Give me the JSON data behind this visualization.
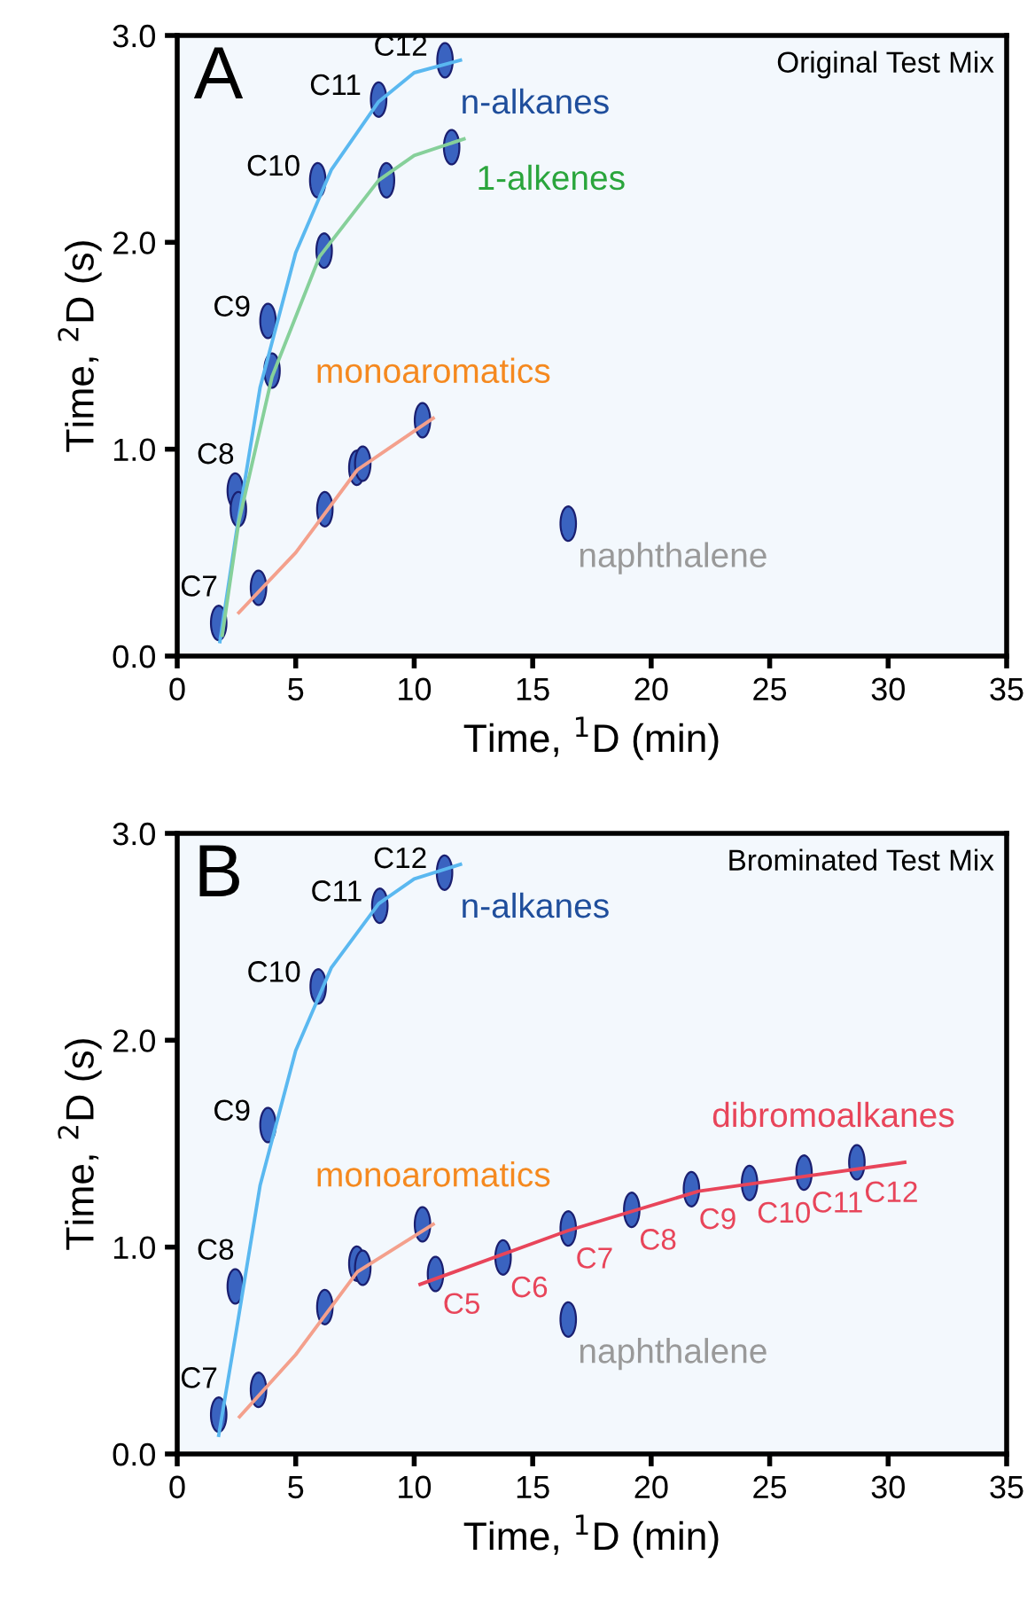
{
  "chart_data": [
    {
      "type": "scatter",
      "title": "Original Test Mix",
      "xlabel": "Time, $^{1}$D (min)",
      "ylabel": "Time, $^{2}$D (s)",
      "annotations": [
        "A"
      ],
      "xlim": [
        0,
        35
      ],
      "xticks": [
        0,
        5,
        10,
        15,
        20,
        25,
        30,
        35
      ],
      "ylim": [
        0,
        3
      ],
      "yticks": [
        {
          "value": 0,
          "label": "0.0"
        },
        {
          "value": 1,
          "label": "1.0"
        },
        {
          "value": 2,
          "label": "2.0"
        },
        {
          "value": 3,
          "label": "3.0"
        }
      ],
      "series": [
        {
          "type": "line",
          "name": "n-alkanes",
          "color": "#5ab8f0",
          "x": [
            1.8,
            2.5,
            3.5,
            5,
            6.5,
            8.5,
            10,
            11.95
          ],
          "values": [
            0.07,
            0.6,
            1.3,
            1.95,
            2.35,
            2.68,
            2.82,
            2.88
          ]
        },
        {
          "type": "line",
          "name": "1-alkenes",
          "color": "#86d09a",
          "x": [
            1.9,
            2.6,
            4,
            6,
            8.5,
            10,
            12.1
          ],
          "values": [
            0.1,
            0.65,
            1.35,
            1.93,
            2.3,
            2.42,
            2.5
          ]
        },
        {
          "type": "line",
          "name": "monoaromatics",
          "color": "#f4a08c",
          "x": [
            2.6,
            5,
            7.6,
            10.8
          ],
          "values": [
            0.21,
            0.5,
            0.9,
            1.15
          ]
        },
        {
          "color": "#3a63c0",
          "x": [
            1.75,
            2.45,
            3.83,
            5.93,
            8.5,
            11.3
          ],
          "values": [
            0.16,
            0.8,
            1.62,
            2.3,
            2.69,
            2.88
          ],
          "value_labels": [
            "C7",
            "C8",
            "C9",
            "C10",
            "C11",
            "C12"
          ]
        },
        {
          "color": "#3a63c0",
          "x": [
            2.58,
            4.0,
            6.2,
            8.83,
            11.58
          ],
          "values": [
            0.71,
            1.38,
            1.96,
            2.3,
            2.46
          ]
        },
        {
          "color": "#3a63c0",
          "x": [
            3.43,
            6.23,
            7.58,
            7.83,
            10.35
          ],
          "values": [
            0.33,
            0.71,
            0.91,
            0.93,
            1.14
          ]
        },
        {
          "color": "#3a63c0",
          "x": [
            16.5
          ],
          "values": [
            0.64
          ],
          "value_labels": [
            "naphthalene"
          ]
        }
      ]
    },
    {
      "type": "scatter",
      "title": "Brominated Test Mix",
      "xlabel": "Time, $^{1}$D (min)",
      "ylabel": "Time, $^{2}$D (s)",
      "annotations": [
        "B"
      ],
      "xlim": [
        0,
        35
      ],
      "xticks": [
        0,
        5,
        10,
        15,
        20,
        25,
        30,
        35
      ],
      "ylim": [
        0,
        3
      ],
      "yticks": [
        {
          "value": 0,
          "label": "0.0"
        },
        {
          "value": 1,
          "label": "1.0"
        },
        {
          "value": 2,
          "label": "2.0"
        },
        {
          "value": 3,
          "label": "3.0"
        }
      ],
      "series": [
        {
          "type": "line",
          "name": "n-alkanes",
          "color": "#5ab8f0",
          "x": [
            1.75,
            2.5,
            3.5,
            5,
            6.5,
            8.5,
            10,
            11.95
          ],
          "values": [
            0.09,
            0.6,
            1.3,
            1.95,
            2.35,
            2.66,
            2.78,
            2.85
          ]
        },
        {
          "type": "line",
          "name": "monoaromatics",
          "color": "#f4a08c",
          "x": [
            2.63,
            5,
            7.6,
            10.8
          ],
          "values": [
            0.18,
            0.48,
            0.88,
            1.11
          ]
        },
        {
          "type": "line",
          "name": "dibromoalkanes",
          "color": "#e8455a",
          "x": [
            10.25,
            16.5,
            22,
            30.7
          ],
          "values": [
            0.82,
            1.08,
            1.27,
            1.41
          ]
        },
        {
          "color": "#3a63c0",
          "x": [
            1.75,
            2.45,
            3.83,
            5.95,
            8.55,
            11.28
          ],
          "values": [
            0.19,
            0.81,
            1.59,
            2.26,
            2.65,
            2.81
          ],
          "value_labels": [
            "C7",
            "C8",
            "C9",
            "C10",
            "C11",
            "C12"
          ]
        },
        {
          "color": "#3a63c0",
          "x": [
            3.43,
            6.23,
            7.58,
            7.83,
            10.35
          ],
          "values": [
            0.31,
            0.71,
            0.92,
            0.9,
            1.11
          ]
        },
        {
          "color": "#3a63c0",
          "x": [
            10.9,
            13.75,
            16.5,
            19.18,
            21.7,
            24.15,
            26.45,
            28.68
          ],
          "values": [
            0.87,
            0.95,
            1.09,
            1.18,
            1.28,
            1.31,
            1.36,
            1.41
          ],
          "value_labels": [
            "C5",
            "C6",
            "C7",
            "C8",
            "C9",
            "C10",
            "C11",
            "C12"
          ]
        },
        {
          "color": "#3a63c0",
          "x": [
            16.5
          ],
          "values": [
            0.65
          ],
          "value_labels": [
            "naphthalene"
          ]
        }
      ]
    }
  ]
}
